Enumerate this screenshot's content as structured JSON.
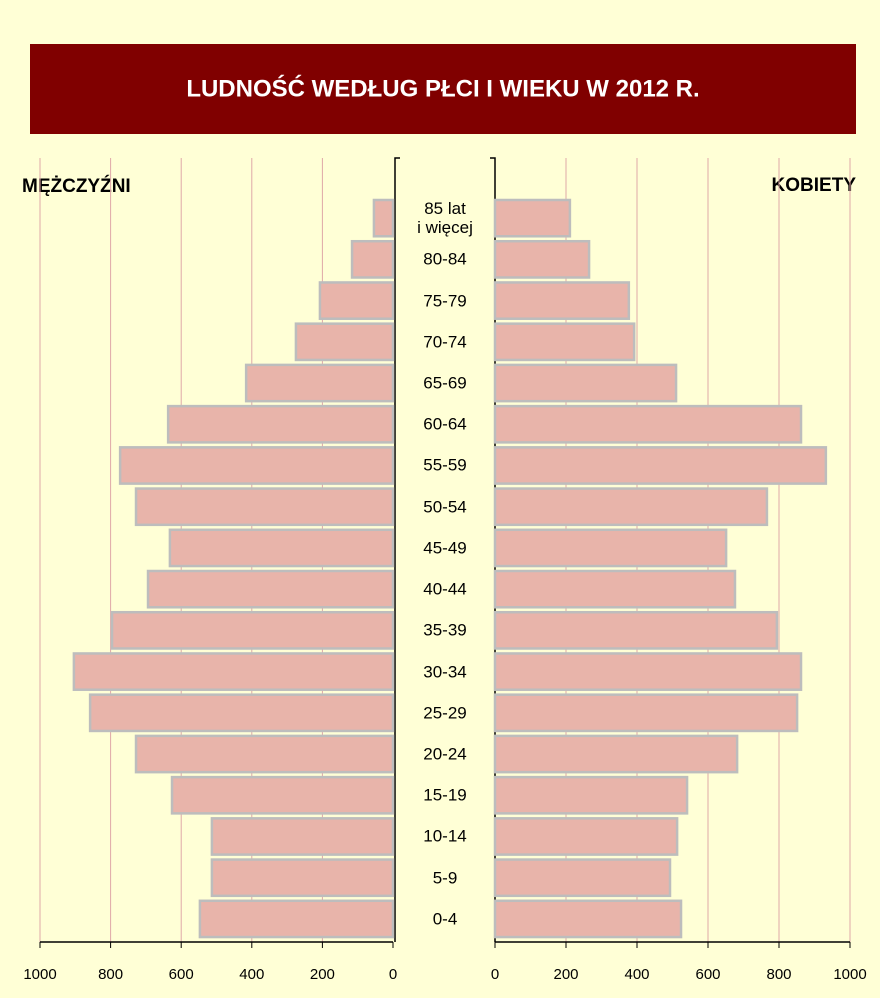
{
  "chart_data": {
    "type": "pyramid",
    "title": "LUDNOŚĆ WEDŁUG PŁCI I WIEKU W 2012 R.",
    "categories": [
      "85 lat\ni więcej",
      "80-84",
      "75-79",
      "70-74",
      "65-69",
      "60-64",
      "55-59",
      "50-54",
      "45-49",
      "40-44",
      "35-39",
      "30-34",
      "25-29",
      "20-24",
      "15-19",
      "10-14",
      "5-9",
      "0-4"
    ],
    "series": [
      {
        "name": "MĘŻCZYŹNI",
        "color": "#e8b4aa",
        "values": [
          54,
          116,
          207,
          275,
          416,
          637,
          773,
          728,
          632,
          694,
          796,
          904,
          858,
          728,
          626,
          513,
          513,
          547
        ]
      },
      {
        "name": "KOBIETY",
        "color": "#e8b4aa",
        "values": [
          211,
          265,
          377,
          392,
          510,
          862,
          932,
          766,
          651,
          676,
          794,
          862,
          851,
          682,
          541,
          513,
          493,
          524
        ]
      }
    ],
    "xlim": [
      0,
      1000
    ],
    "xticks": [
      0,
      200,
      400,
      600,
      800,
      1000
    ],
    "grid": true
  }
}
